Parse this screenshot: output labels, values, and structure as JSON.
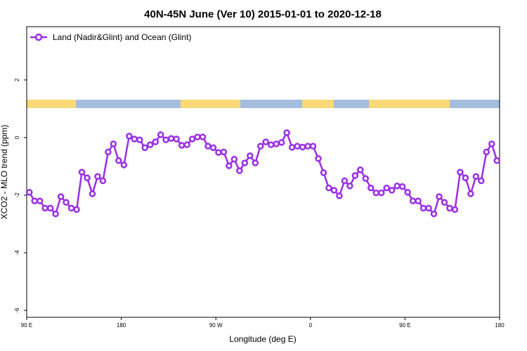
{
  "chart_data": {
    "type": "line",
    "title": "40N-45N June (Ver 10)   2015-01-01 to 2020-12-18",
    "x_label": "Longitude (deg E)",
    "y_label": "XCO2 - MLO trend (ppm)",
    "x": [
      92.5,
      97.5,
      102.5,
      107.5,
      112.5,
      117.5,
      122.5,
      127.5,
      132.5,
      137.5,
      142.5,
      147.5,
      152.5,
      157.5,
      162.5,
      167.5,
      172.5,
      177.5,
      182.5,
      187.5,
      192.5,
      197.5,
      202.5,
      207.5,
      212.5,
      217.5,
      222.5,
      227.5,
      232.5,
      237.5,
      242.5,
      247.5,
      252.5,
      257.5,
      262.5,
      267.5,
      272.5,
      277.5,
      282.5,
      287.5,
      292.5,
      297.5,
      302.5,
      307.5,
      312.5,
      317.5,
      322.5,
      327.5,
      332.5,
      337.5,
      342.5,
      347.5,
      352.5,
      357.5,
      362.5,
      367.5,
      372.5,
      377.5,
      382.5,
      387.5,
      392.5,
      397.5,
      402.5,
      407.5,
      412.5,
      417.5,
      422.5,
      427.5,
      432.5,
      437.5,
      442.5,
      447.5,
      452.5,
      457.5,
      462.5,
      467.5,
      472.5,
      477.5,
      482.5,
      487.5,
      492.5,
      497.5,
      502.5,
      507.5,
      512.5,
      517.5,
      522.5,
      527.5,
      532.5,
      537.5
    ],
    "series": [
      {
        "name": "Land (Nadir&Glint) and Ocean (Glint)",
        "color": "#9a2ee6",
        "values": [
          -1.9,
          -2.2,
          -2.2,
          -2.45,
          -2.45,
          -2.65,
          -2.05,
          -2.25,
          -2.45,
          -2.5,
          -1.2,
          -1.4,
          -1.95,
          -1.35,
          -1.5,
          -0.5,
          -0.22,
          -0.8,
          -0.95,
          0.05,
          -0.05,
          -0.08,
          -0.35,
          -0.25,
          -0.15,
          0.1,
          -0.08,
          -0.03,
          -0.05,
          -0.27,
          -0.25,
          -0.05,
          0.02,
          0.02,
          -0.3,
          -0.35,
          -0.52,
          -0.5,
          -0.98,
          -0.75,
          -1.15,
          -0.88,
          -0.63,
          -0.88,
          -0.3,
          -0.15,
          -0.25,
          -0.22,
          -0.17,
          0.17,
          -0.34,
          -0.3,
          -0.33,
          -0.3,
          -0.3,
          -0.73,
          -1.22,
          -1.75,
          -1.83,
          -2.02,
          -1.5,
          -1.68,
          -1.32,
          -1.12,
          -1.42,
          -1.75,
          -1.92,
          -1.92,
          -1.75,
          -1.83,
          -1.68,
          -1.7,
          -1.9,
          -2.2,
          -2.2,
          -2.45,
          -2.45,
          -2.65,
          -2.05,
          -2.25,
          -2.45,
          -2.5,
          -1.2,
          -1.4,
          -1.95,
          -1.35,
          -1.5,
          -0.5,
          -0.22,
          -0.8
        ]
      }
    ],
    "xlim": [
      90,
      540
    ],
    "xticks": [
      {
        "value": 90,
        "label": "90 E"
      },
      {
        "value": 180,
        "label": "180"
      },
      {
        "value": 270,
        "label": "90 W"
      },
      {
        "value": 360,
        "label": "0"
      },
      {
        "value": 450,
        "label": "90 E"
      },
      {
        "value": 540,
        "label": "180"
      }
    ],
    "ylim": [
      -6.24,
      3.85
    ],
    "yticks": [
      -6,
      -4,
      -2,
      0,
      2
    ],
    "grid": false,
    "legend": "top-left"
  }
}
